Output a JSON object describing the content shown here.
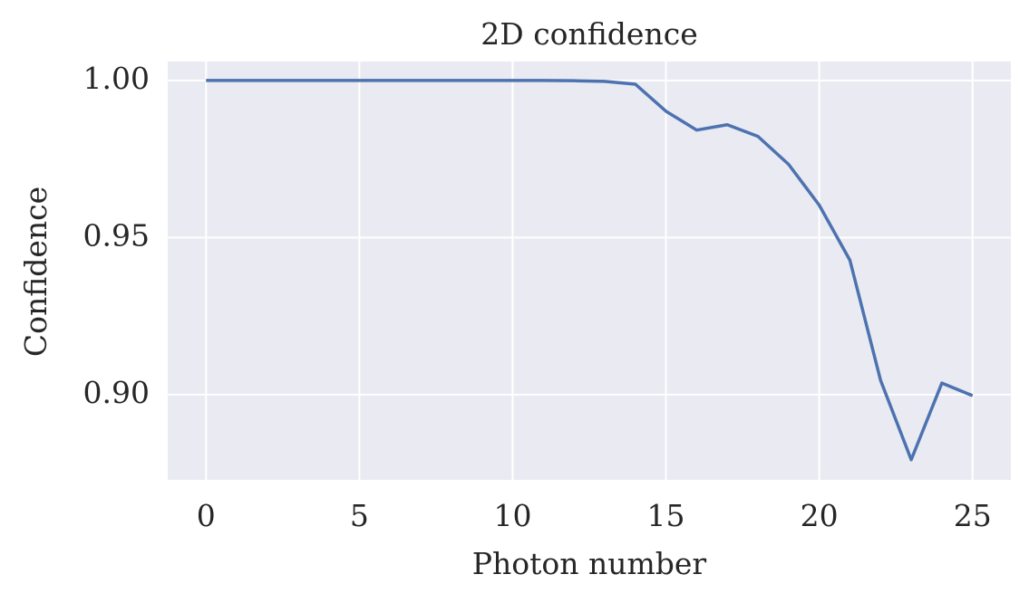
{
  "chart_data": {
    "type": "line",
    "title": "2D confidence",
    "x_label": "Photon number",
    "y_label": "Confidence",
    "x": [
      0,
      1,
      2,
      3,
      4,
      5,
      6,
      7,
      8,
      9,
      10,
      11,
      12,
      13,
      14,
      15,
      16,
      17,
      18,
      19,
      20,
      21,
      22,
      23,
      24,
      25
    ],
    "series": [
      {
        "color": "#4c72b0",
        "values": [
          1.0,
          1.0,
          1.0,
          1.0,
          1.0,
          1.0,
          1.0,
          1.0,
          1.0,
          1.0,
          1.0,
          1.0,
          0.9999,
          0.9997,
          0.9988,
          0.9902,
          0.9842,
          0.9859,
          0.9822,
          0.9733,
          0.9603,
          0.9428,
          0.9046,
          0.8793,
          0.9037,
          0.8997
        ]
      }
    ],
    "xlim": [
      -1.25,
      26.25
    ],
    "xticks": [
      0,
      5,
      10,
      15,
      20,
      25
    ],
    "ylim": [
      0.8729,
      1.006
    ],
    "yticks": [
      {
        "value": 0.9,
        "label": "0.90"
      },
      {
        "value": 0.95,
        "label": "0.95"
      },
      {
        "value": 1.0,
        "label": "1.00"
      }
    ],
    "grid": true
  }
}
